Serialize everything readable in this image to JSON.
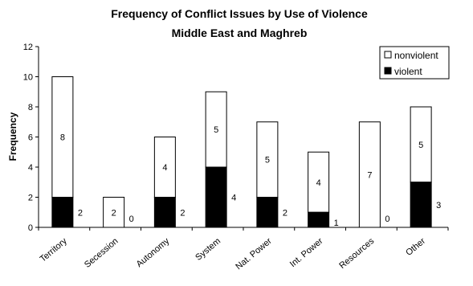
{
  "chart_data": {
    "type": "bar",
    "stacked": true,
    "title": "Frequency of Conflict Issues by Use of Violence",
    "subtitle": "Middle East and Maghreb",
    "xlabel": "",
    "ylabel": "Frequency",
    "ylim": [
      0,
      12
    ],
    "yticks": [
      "0",
      "2",
      "4",
      "6",
      "8",
      "10",
      "12"
    ],
    "grid": false,
    "legend_position": "top-right",
    "categories": [
      "Territory",
      "Secession",
      "Autonomy",
      "System",
      "Nat. Power",
      "Int. Power",
      "Resources",
      "Other"
    ],
    "series": [
      {
        "name": "violent",
        "color": "#000000",
        "values": [
          2,
          0,
          2,
          4,
          2,
          1,
          0,
          3
        ]
      },
      {
        "name": "nonviolent",
        "color": "#ffffff",
        "values": [
          8,
          2,
          4,
          5,
          5,
          4,
          7,
          5
        ]
      }
    ]
  }
}
